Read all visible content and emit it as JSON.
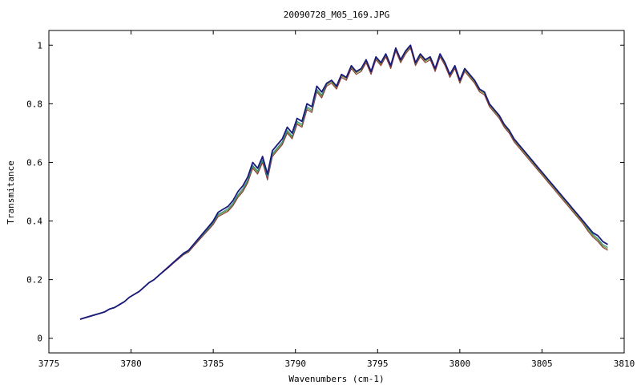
{
  "chart_data": {
    "type": "line",
    "title": "20090728_M05_169.JPG",
    "xlabel": "Wavenumbers (cm-1)",
    "ylabel": "Transmitance",
    "xlim": [
      3775,
      3810
    ],
    "ylim": [
      -0.05,
      1.05
    ],
    "grid": false,
    "legend": "none",
    "x_ticks": [
      3775,
      3780,
      3785,
      3790,
      3795,
      3800,
      3805,
      3810
    ],
    "y_ticks": [
      0,
      0.2,
      0.4,
      0.6,
      0.8,
      1
    ],
    "x_tick_labels": [
      "3775",
      "3780",
      "3785",
      "3790",
      "3795",
      "3800",
      "3805",
      "3810"
    ],
    "y_tick_labels": [
      "0",
      "0.2",
      "0.4",
      "0.6",
      "0.8",
      "1"
    ],
    "x": [
      3776.9,
      3777.2,
      3777.5,
      3777.8,
      3778.1,
      3778.4,
      3778.7,
      3779.0,
      3779.3,
      3779.6,
      3779.9,
      3780.2,
      3780.5,
      3780.8,
      3781.1,
      3781.4,
      3781.7,
      3782.0,
      3782.3,
      3782.6,
      3782.9,
      3783.2,
      3783.5,
      3783.8,
      3784.1,
      3784.4,
      3784.7,
      3785.0,
      3785.3,
      3785.6,
      3785.9,
      3786.2,
      3786.5,
      3786.8,
      3787.1,
      3787.4,
      3787.7,
      3788.0,
      3788.3,
      3788.6,
      3788.9,
      3789.2,
      3789.5,
      3789.8,
      3790.1,
      3790.4,
      3790.7,
      3791.0,
      3791.3,
      3791.6,
      3791.9,
      3792.2,
      3792.5,
      3792.8,
      3793.1,
      3793.4,
      3793.7,
      3794.0,
      3794.3,
      3794.6,
      3794.9,
      3795.2,
      3795.5,
      3795.8,
      3796.1,
      3796.4,
      3796.7,
      3797.0,
      3797.3,
      3797.6,
      3797.9,
      3798.2,
      3798.5,
      3798.8,
      3799.1,
      3799.4,
      3799.7,
      3800.0,
      3800.3,
      3800.6,
      3800.9,
      3801.2,
      3801.5,
      3801.8,
      3802.1,
      3802.4,
      3802.7,
      3803.0,
      3803.3,
      3803.6,
      3803.9,
      3804.2,
      3804.5,
      3804.8,
      3805.1,
      3805.4,
      3805.7,
      3806.0,
      3806.3,
      3806.6,
      3806.9,
      3807.2,
      3807.5,
      3807.8,
      3808.1,
      3808.4,
      3808.7,
      3809.0
    ],
    "series": [
      {
        "color": "#1a1a7a",
        "values": [
          0.065,
          0.07,
          0.075,
          0.08,
          0.085,
          0.09,
          0.1,
          0.105,
          0.115,
          0.125,
          0.14,
          0.15,
          0.16,
          0.175,
          0.19,
          0.2,
          0.215,
          0.23,
          0.245,
          0.26,
          0.275,
          0.29,
          0.3,
          0.32,
          0.34,
          0.36,
          0.38,
          0.4,
          0.43,
          0.44,
          0.45,
          0.47,
          0.5,
          0.52,
          0.55,
          0.6,
          0.58,
          0.62,
          0.56,
          0.64,
          0.66,
          0.68,
          0.72,
          0.7,
          0.75,
          0.74,
          0.8,
          0.79,
          0.86,
          0.84,
          0.87,
          0.88,
          0.86,
          0.9,
          0.89,
          0.93,
          0.91,
          0.92,
          0.95,
          0.91,
          0.96,
          0.94,
          0.97,
          0.93,
          0.99,
          0.95,
          0.98,
          1.0,
          0.94,
          0.97,
          0.95,
          0.96,
          0.92,
          0.97,
          0.94,
          0.9,
          0.93,
          0.88,
          0.92,
          0.9,
          0.88,
          0.85,
          0.84,
          0.8,
          0.78,
          0.76,
          0.73,
          0.71,
          0.68,
          0.66,
          0.64,
          0.62,
          0.6,
          0.58,
          0.56,
          0.54,
          0.52,
          0.5,
          0.48,
          0.46,
          0.44,
          0.42,
          0.4,
          0.38,
          0.36,
          0.35,
          0.33,
          0.32
        ]
      },
      {
        "color": "#2e8b8b",
        "values": [
          0.066,
          0.071,
          0.076,
          0.081,
          0.086,
          0.091,
          0.1,
          0.106,
          0.116,
          0.126,
          0.14,
          0.15,
          0.161,
          0.176,
          0.19,
          0.2,
          0.216,
          0.23,
          0.245,
          0.26,
          0.274,
          0.288,
          0.298,
          0.318,
          0.337,
          0.356,
          0.375,
          0.395,
          0.423,
          0.432,
          0.442,
          0.461,
          0.49,
          0.51,
          0.54,
          0.59,
          0.57,
          0.61,
          0.55,
          0.63,
          0.65,
          0.67,
          0.71,
          0.69,
          0.74,
          0.73,
          0.79,
          0.78,
          0.85,
          0.83,
          0.87,
          0.88,
          0.86,
          0.9,
          0.89,
          0.93,
          0.91,
          0.92,
          0.95,
          0.91,
          0.96,
          0.94,
          0.97,
          0.93,
          0.99,
          0.95,
          0.98,
          1.0,
          0.94,
          0.97,
          0.95,
          0.96,
          0.92,
          0.97,
          0.94,
          0.9,
          0.93,
          0.88,
          0.92,
          0.9,
          0.88,
          0.85,
          0.84,
          0.8,
          0.78,
          0.76,
          0.73,
          0.71,
          0.68,
          0.66,
          0.64,
          0.62,
          0.6,
          0.58,
          0.56,
          0.54,
          0.52,
          0.5,
          0.48,
          0.46,
          0.44,
          0.42,
          0.4,
          0.375,
          0.355,
          0.34,
          0.32,
          0.31
        ]
      },
      {
        "color": "#8b3a3a",
        "values": [
          0.064,
          0.069,
          0.074,
          0.079,
          0.084,
          0.089,
          0.099,
          0.104,
          0.114,
          0.124,
          0.139,
          0.149,
          0.159,
          0.174,
          0.189,
          0.199,
          0.214,
          0.228,
          0.242,
          0.257,
          0.271,
          0.285,
          0.294,
          0.313,
          0.332,
          0.351,
          0.369,
          0.388,
          0.415,
          0.424,
          0.433,
          0.452,
          0.48,
          0.5,
          0.53,
          0.58,
          0.56,
          0.6,
          0.54,
          0.62,
          0.64,
          0.66,
          0.7,
          0.68,
          0.73,
          0.72,
          0.78,
          0.77,
          0.84,
          0.82,
          0.86,
          0.87,
          0.85,
          0.89,
          0.88,
          0.92,
          0.9,
          0.91,
          0.94,
          0.9,
          0.95,
          0.93,
          0.96,
          0.92,
          0.98,
          0.94,
          0.97,
          0.99,
          0.93,
          0.96,
          0.94,
          0.95,
          0.91,
          0.96,
          0.93,
          0.89,
          0.92,
          0.87,
          0.91,
          0.89,
          0.87,
          0.84,
          0.83,
          0.79,
          0.77,
          0.75,
          0.72,
          0.7,
          0.67,
          0.65,
          0.63,
          0.61,
          0.59,
          0.57,
          0.55,
          0.53,
          0.51,
          0.49,
          0.47,
          0.45,
          0.43,
          0.41,
          0.39,
          0.365,
          0.345,
          0.33,
          0.31,
          0.3
        ]
      },
      {
        "color": "#6b8e23",
        "values": [
          0.065,
          0.07,
          0.075,
          0.08,
          0.085,
          0.09,
          0.1,
          0.105,
          0.115,
          0.125,
          0.14,
          0.15,
          0.16,
          0.175,
          0.19,
          0.2,
          0.215,
          0.229,
          0.243,
          0.258,
          0.272,
          0.286,
          0.296,
          0.315,
          0.334,
          0.353,
          0.372,
          0.391,
          0.419,
          0.428,
          0.437,
          0.456,
          0.485,
          0.505,
          0.535,
          0.585,
          0.565,
          0.605,
          0.545,
          0.625,
          0.645,
          0.665,
          0.705,
          0.685,
          0.735,
          0.725,
          0.785,
          0.775,
          0.845,
          0.825,
          0.865,
          0.875,
          0.855,
          0.895,
          0.885,
          0.925,
          0.905,
          0.915,
          0.945,
          0.905,
          0.955,
          0.935,
          0.965,
          0.925,
          0.985,
          0.945,
          0.975,
          0.995,
          0.935,
          0.965,
          0.945,
          0.955,
          0.915,
          0.965,
          0.935,
          0.895,
          0.925,
          0.875,
          0.915,
          0.895,
          0.875,
          0.845,
          0.835,
          0.795,
          0.775,
          0.755,
          0.725,
          0.705,
          0.675,
          0.655,
          0.635,
          0.615,
          0.595,
          0.575,
          0.555,
          0.535,
          0.515,
          0.495,
          0.475,
          0.455,
          0.435,
          0.415,
          0.395,
          0.37,
          0.35,
          0.335,
          0.315,
          0.305
        ]
      }
    ]
  }
}
